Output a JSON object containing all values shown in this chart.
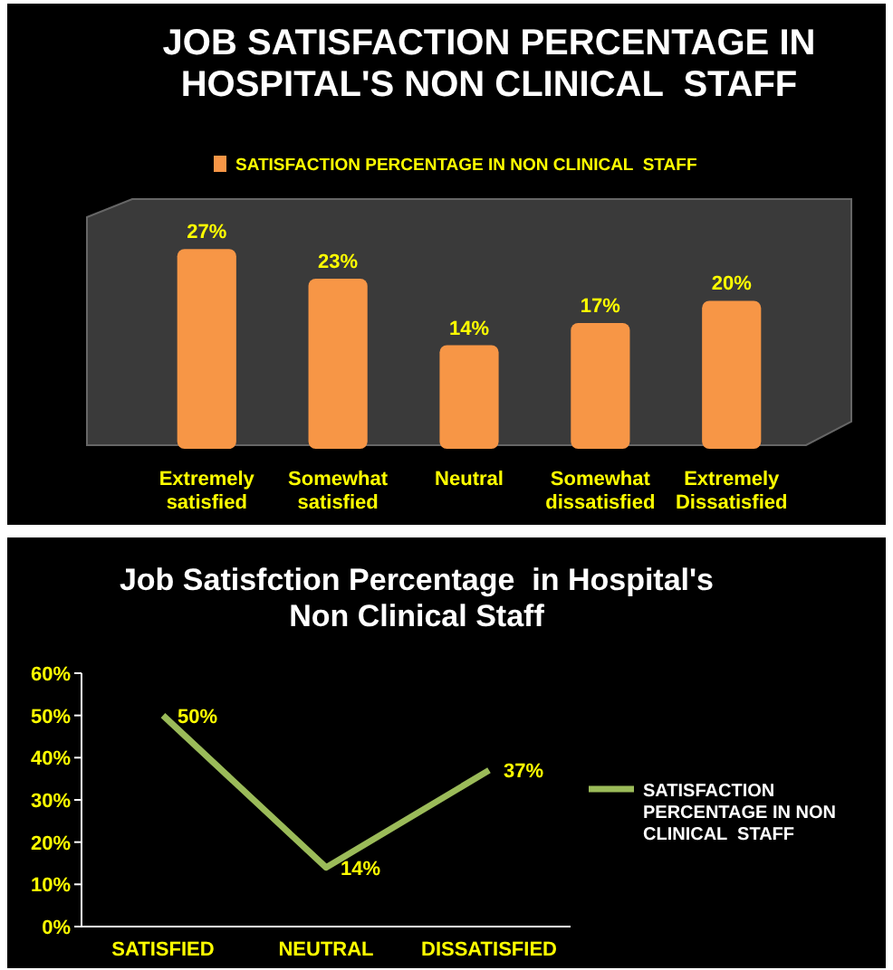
{
  "chart_data": [
    {
      "type": "bar",
      "title": "JOB SATISFACTION PERCENTAGE IN HOSPITAL'S NON CLINICAL  STAFF",
      "categories": [
        "Extremely satisfied",
        "Somewhat satisfied",
        "Neutral",
        "Somewhat dissatisfied",
        "Extremely Dissatisfied"
      ],
      "series": [
        {
          "name": "SATISFACTION PERCENTAGE IN NON CLINICAL  STAFF",
          "color": "#f79646",
          "values": [
            27,
            23,
            14,
            17,
            20
          ],
          "value_labels": [
            "27%",
            "23%",
            "14%",
            "17%",
            "20%"
          ]
        }
      ],
      "legend": "top"
    },
    {
      "type": "line",
      "title": "Job Satisfction Percentage  in Hospital's Non Clinical Staff",
      "categories": [
        "SATISFIED",
        "NEUTRAL",
        "DISSATISFIED"
      ],
      "series": [
        {
          "name": "SATISFACTION PERCENTAGE IN NON CLINICAL  STAFF",
          "color": "#9bbb59",
          "values": [
            50,
            14,
            37
          ],
          "value_labels": [
            "50%",
            "14%",
            "37%"
          ]
        }
      ],
      "ylim": [
        0,
        60
      ],
      "yticks": [
        {
          "value": 0,
          "label": "0%"
        },
        {
          "value": 10,
          "label": "10%"
        },
        {
          "value": 20,
          "label": "20%"
        },
        {
          "value": 30,
          "label": "30%"
        },
        {
          "value": 40,
          "label": "40%"
        },
        {
          "value": 50,
          "label": "50%"
        },
        {
          "value": 60,
          "label": "60%"
        }
      ],
      "grid": false,
      "legend": "right",
      "marker": "none",
      "line_style": "solid"
    }
  ]
}
